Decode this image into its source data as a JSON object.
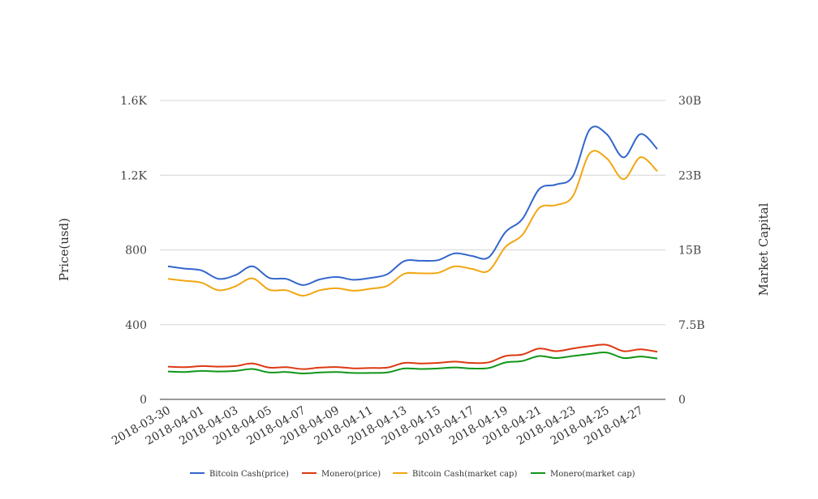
{
  "chart_data": {
    "type": "line",
    "title": "",
    "x": [
      "2018-03-30",
      "2018-03-31",
      "2018-04-01",
      "2018-04-02",
      "2018-04-03",
      "2018-04-04",
      "2018-04-05",
      "2018-04-06",
      "2018-04-07",
      "2018-04-08",
      "2018-04-09",
      "2018-04-10",
      "2018-04-11",
      "2018-04-12",
      "2018-04-13",
      "2018-04-14",
      "2018-04-15",
      "2018-04-16",
      "2018-04-17",
      "2018-04-18",
      "2018-04-19",
      "2018-04-20",
      "2018-04-21",
      "2018-04-22",
      "2018-04-23",
      "2018-04-24",
      "2018-04-25",
      "2018-04-26",
      "2018-04-27",
      "2018-04-28"
    ],
    "x_tick_labels": [
      "2018-03-30",
      "2018-04-01",
      "2018-04-03",
      "2018-04-05",
      "2018-04-07",
      "2018-04-09",
      "2018-04-11",
      "2018-04-13",
      "2018-04-15",
      "2018-04-17",
      "2018-04-19",
      "2018-04-21",
      "2018-04-23",
      "2018-04-25",
      "2018-04-27"
    ],
    "y_left": {
      "label": "Price(usd)",
      "range": [
        0,
        1600
      ],
      "ticks": [
        0,
        400,
        800,
        1200,
        1600
      ],
      "tick_labels": [
        "0",
        "400",
        "800",
        "1.2K",
        "1.6K"
      ]
    },
    "y_right": {
      "label": "Market Capital",
      "range": [
        0,
        30000000000
      ],
      "ticks": [
        0,
        7500000000,
        15000000000,
        22500000000,
        30000000000
      ],
      "tick_labels": [
        "0",
        "7.5B",
        "15B",
        "23B",
        "30B"
      ]
    },
    "grid": true,
    "legend_position": "bottom",
    "series": [
      {
        "name": "Bitcoin Cash(price)",
        "axis": "left",
        "color": "#3366cc",
        "values": [
          712,
          700,
          690,
          645,
          665,
          712,
          650,
          645,
          612,
          642,
          655,
          640,
          650,
          670,
          740,
          742,
          745,
          782,
          768,
          760,
          895,
          965,
          1125,
          1150,
          1195,
          1445,
          1420,
          1295,
          1420,
          1340
        ]
      },
      {
        "name": "Monero(price)",
        "axis": "left",
        "color": "#dc3912",
        "values": [
          175,
          172,
          178,
          175,
          178,
          192,
          170,
          172,
          162,
          170,
          173,
          166,
          168,
          170,
          195,
          192,
          195,
          202,
          195,
          198,
          232,
          240,
          272,
          258,
          272,
          285,
          292,
          258,
          268,
          255
        ]
      },
      {
        "name": "Bitcoin Cash(market cap)",
        "axis": "right",
        "color": "#f2a611",
        "values": [
          12100000000,
          11900000000,
          11700000000,
          10950000000,
          11350000000,
          12150000000,
          11000000000,
          10950000000,
          10400000000,
          10950000000,
          11150000000,
          10900000000,
          11100000000,
          11400000000,
          12600000000,
          12650000000,
          12700000000,
          13350000000,
          13100000000,
          12900000000,
          15300000000,
          16500000000,
          19200000000,
          19500000000,
          20400000000,
          24700000000,
          24200000000,
          22100000000,
          24300000000,
          22900000000
        ]
      },
      {
        "name": "Monero(market cap)",
        "axis": "right",
        "color": "#109618",
        "values": [
          2800000000,
          2750000000,
          2850000000,
          2800000000,
          2850000000,
          3050000000,
          2700000000,
          2750000000,
          2600000000,
          2700000000,
          2750000000,
          2650000000,
          2650000000,
          2700000000,
          3100000000,
          3050000000,
          3100000000,
          3200000000,
          3100000000,
          3150000000,
          3700000000,
          3850000000,
          4350000000,
          4150000000,
          4350000000,
          4550000000,
          4700000000,
          4150000000,
          4300000000,
          4100000000
        ]
      }
    ]
  }
}
